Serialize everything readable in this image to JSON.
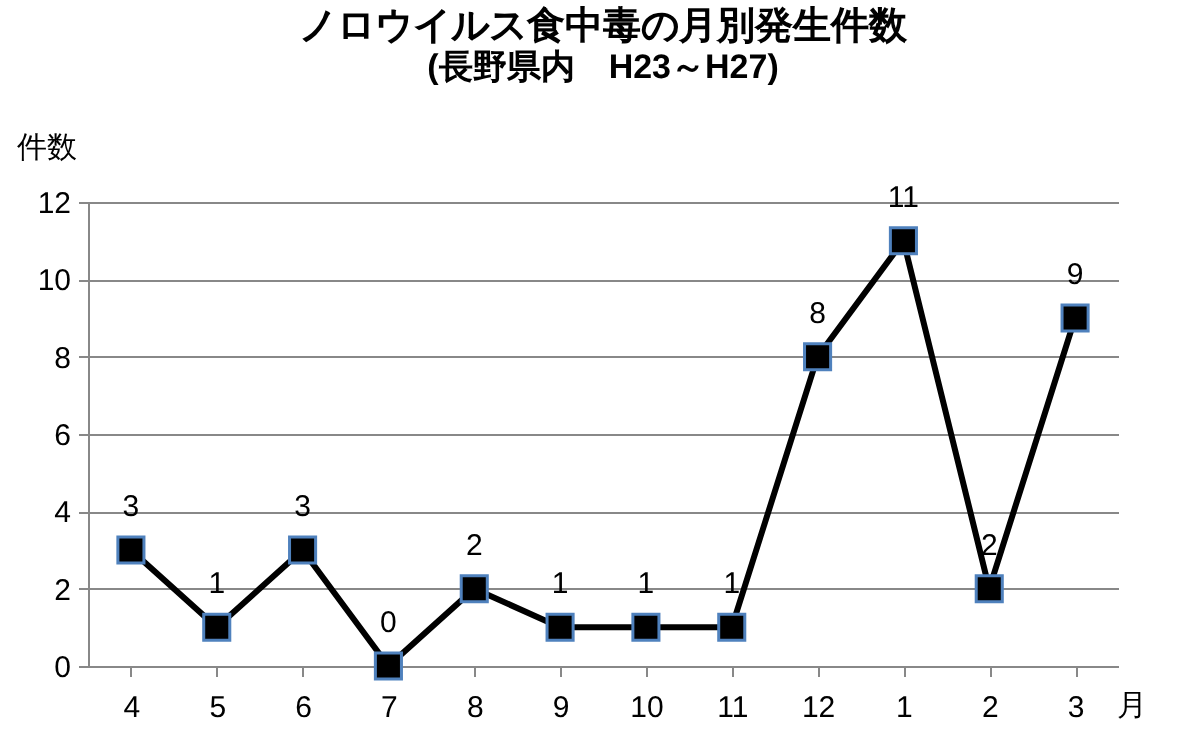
{
  "chart_data": {
    "type": "line",
    "title": "ノロウイルス食中毒の月別発生件数",
    "subtitle": "(長野県内　H23～H27)",
    "xlabel": "月",
    "ylabel": "件数",
    "categories": [
      "4",
      "5",
      "6",
      "7",
      "8",
      "9",
      "10",
      "11",
      "12",
      "1",
      "2",
      "3"
    ],
    "series": [
      {
        "color": "#000000",
        "values": [
          3,
          1,
          3,
          0,
          2,
          1,
          1,
          1,
          8,
          11,
          2,
          9
        ]
      }
    ],
    "ylim": [
      0,
      12
    ],
    "yticks": [
      0,
      2,
      4,
      6,
      8,
      10,
      12
    ],
    "grid": "y",
    "marker": "square",
    "line_style": "solid",
    "data_labels": true
  }
}
